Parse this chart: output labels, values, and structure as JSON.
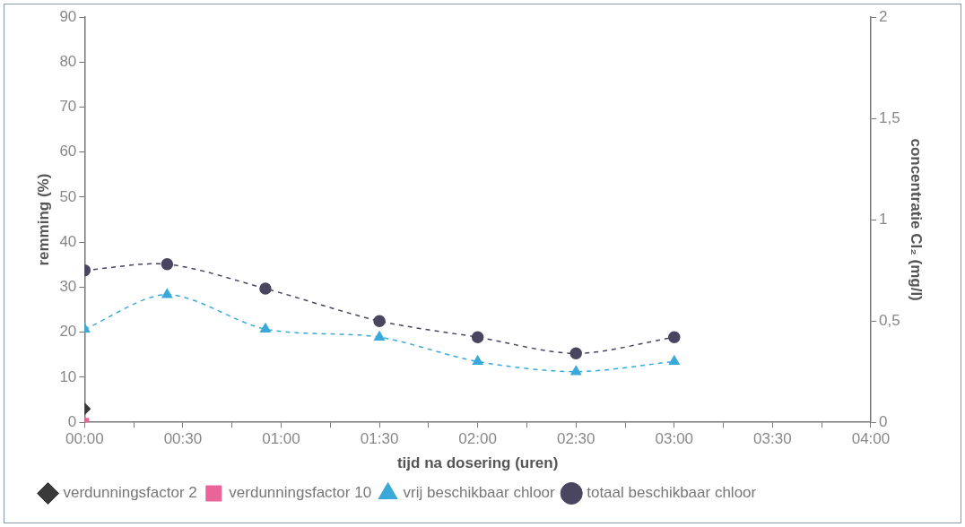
{
  "chart_data": {
    "type": "line",
    "xlabel": "tijd na dosering (uren)",
    "ylabel": "remming (%)",
    "y2label": "concentratie Cl₂ (mg/l)",
    "xlim": [
      0,
      4
    ],
    "xticks": [
      {
        "value": 0,
        "label": "00:00"
      },
      {
        "value": 0.25,
        "label": null
      },
      {
        "value": 0.5,
        "label": "00:30"
      },
      {
        "value": 0.75,
        "label": null
      },
      {
        "value": 1,
        "label": "01:00"
      },
      {
        "value": 1.25,
        "label": null
      },
      {
        "value": 1.5,
        "label": "01:30"
      },
      {
        "value": 1.75,
        "label": null
      },
      {
        "value": 2,
        "label": "02:00"
      },
      {
        "value": 2.25,
        "label": null
      },
      {
        "value": 2.5,
        "label": "02:30"
      },
      {
        "value": 2.75,
        "label": null
      },
      {
        "value": 3,
        "label": "03:00"
      },
      {
        "value": 3.25,
        "label": null
      },
      {
        "value": 3.5,
        "label": "03:30"
      },
      {
        "value": 3.75,
        "label": null
      },
      {
        "value": 4,
        "label": "04:00"
      }
    ],
    "ylim": [
      0,
      90
    ],
    "yticks": [
      0,
      10,
      20,
      30,
      40,
      50,
      60,
      70,
      80,
      90
    ],
    "y2lim": [
      0,
      2
    ],
    "y2ticks": [
      0,
      {
        "value": 0.5,
        "label": "0,5"
      },
      1,
      {
        "value": 1.5,
        "label": "1,5"
      },
      2
    ],
    "grid": false,
    "legend": "bottom left",
    "series": [
      {
        "name": "verdunningsfactor 2",
        "color": "#3a3a3a",
        "marker": "diamond",
        "line_style": "solid",
        "x": [
          0
        ],
        "values": [
          3
        ]
      },
      {
        "name": "verdunningsfactor 10",
        "color": "#e8649a",
        "marker": "square",
        "line_style": "solid",
        "x": [
          0
        ],
        "values": [
          0
        ]
      },
      {
        "name": "vrij beschikbaar chloor",
        "color": "#3aa9d9",
        "marker": "triangle",
        "line_style": "dashed",
        "axis": "y2",
        "x": [
          0,
          0.42,
          0.92,
          1.5,
          2,
          2.5,
          3
        ],
        "values": [
          0.46,
          0.63,
          0.46,
          0.42,
          0.3,
          0.25,
          0.3
        ]
      },
      {
        "name": "totaal beschikbaar chloor",
        "color": "#4a4560",
        "marker": "circle",
        "line_style": "dashed",
        "axis": "y2",
        "x": [
          0,
          0.42,
          0.92,
          1.5,
          2,
          2.5,
          3
        ],
        "values": [
          0.75,
          0.78,
          0.66,
          0.5,
          0.42,
          0.34,
          0.42
        ]
      }
    ]
  }
}
